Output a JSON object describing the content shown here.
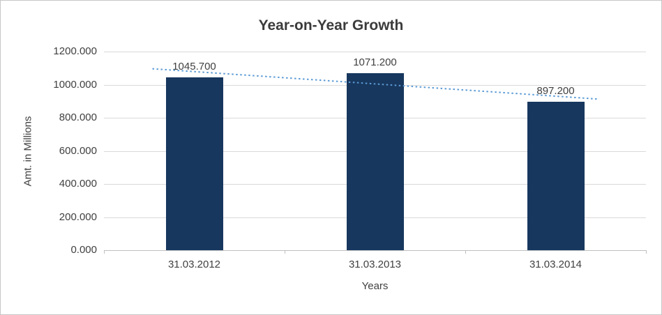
{
  "chart": {
    "title": "Year-on-Year Growth",
    "xlabel": "Years",
    "ylabel": "Amt. in Millions"
  },
  "chart_data": {
    "type": "bar",
    "title": "Year-on-Year Growth",
    "xlabel": "Years",
    "ylabel": "Amt. in Millions",
    "categories": [
      "31.03.2012",
      "31.03.2013",
      "31.03.2014"
    ],
    "values": [
      1045.7,
      1071.2,
      897.2
    ],
    "data_labels": [
      "1045.700",
      "1071.200",
      "897.200"
    ],
    "ylim": [
      0,
      1200
    ],
    "ytick_step": 200,
    "ytick_labels": [
      "0.000",
      "200.000",
      "400.000",
      "600.000",
      "800.000",
      "1000.000",
      "1200.000"
    ],
    "grid": true,
    "legend": "none",
    "bar_color": "#17375E",
    "gridline_color": "#d9d9d9",
    "trendline": {
      "style": "dotted",
      "color": "#5B9BD5",
      "fit_values": [
        1078.95,
        1004.7,
        930.45
      ]
    }
  }
}
